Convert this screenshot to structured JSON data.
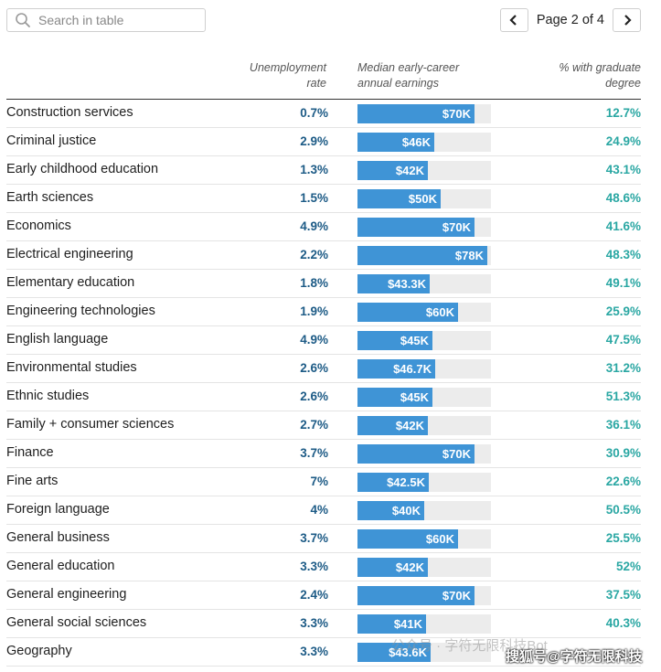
{
  "search": {
    "placeholder": "Search in table"
  },
  "pager": {
    "label": "Page 2 of 4"
  },
  "columns": {
    "unemployment": [
      "Unemployment",
      "rate"
    ],
    "earnings": [
      "Median early-career",
      "annual earnings"
    ],
    "graduate": [
      "% with graduate",
      "degree"
    ]
  },
  "colors": {
    "bar": "#3f94d6",
    "bar_track": "#ececec",
    "unemployment": "#1d5b86",
    "graduate": "#2aa7a3"
  },
  "earnings_scale_max": 80,
  "rows": [
    {
      "major": "Construction services",
      "unemployment": "0.7%",
      "earnings": "$70K",
      "earnings_value": 70,
      "graduate": "12.7%"
    },
    {
      "major": "Criminal justice",
      "unemployment": "2.9%",
      "earnings": "$46K",
      "earnings_value": 46,
      "graduate": "24.9%"
    },
    {
      "major": "Early childhood education",
      "unemployment": "1.3%",
      "earnings": "$42K",
      "earnings_value": 42,
      "graduate": "43.1%"
    },
    {
      "major": "Earth sciences",
      "unemployment": "1.5%",
      "earnings": "$50K",
      "earnings_value": 50,
      "graduate": "48.6%"
    },
    {
      "major": "Economics",
      "unemployment": "4.9%",
      "earnings": "$70K",
      "earnings_value": 70,
      "graduate": "41.6%"
    },
    {
      "major": "Electrical engineering",
      "unemployment": "2.2%",
      "earnings": "$78K",
      "earnings_value": 78,
      "graduate": "48.3%"
    },
    {
      "major": "Elementary education",
      "unemployment": "1.8%",
      "earnings": "$43.3K",
      "earnings_value": 43.3,
      "graduate": "49.1%"
    },
    {
      "major": "Engineering technologies",
      "unemployment": "1.9%",
      "earnings": "$60K",
      "earnings_value": 60,
      "graduate": "25.9%"
    },
    {
      "major": "English language",
      "unemployment": "4.9%",
      "earnings": "$45K",
      "earnings_value": 45,
      "graduate": "47.5%"
    },
    {
      "major": "Environmental studies",
      "unemployment": "2.6%",
      "earnings": "$46.7K",
      "earnings_value": 46.7,
      "graduate": "31.2%"
    },
    {
      "major": "Ethnic studies",
      "unemployment": "2.6%",
      "earnings": "$45K",
      "earnings_value": 45,
      "graduate": "51.3%"
    },
    {
      "major": "Family + consumer sciences",
      "unemployment": "2.7%",
      "earnings": "$42K",
      "earnings_value": 42,
      "graduate": "36.1%"
    },
    {
      "major": "Finance",
      "unemployment": "3.7%",
      "earnings": "$70K",
      "earnings_value": 70,
      "graduate": "30.9%"
    },
    {
      "major": "Fine arts",
      "unemployment": "7%",
      "earnings": "$42.5K",
      "earnings_value": 42.5,
      "graduate": "22.6%"
    },
    {
      "major": "Foreign language",
      "unemployment": "4%",
      "earnings": "$40K",
      "earnings_value": 40,
      "graduate": "50.5%"
    },
    {
      "major": "General business",
      "unemployment": "3.7%",
      "earnings": "$60K",
      "earnings_value": 60,
      "graduate": "25.5%"
    },
    {
      "major": "General education",
      "unemployment": "3.3%",
      "earnings": "$42K",
      "earnings_value": 42,
      "graduate": "52%"
    },
    {
      "major": "General engineering",
      "unemployment": "2.4%",
      "earnings": "$70K",
      "earnings_value": 70,
      "graduate": "37.5%"
    },
    {
      "major": "General social sciences",
      "unemployment": "3.3%",
      "earnings": "$41K",
      "earnings_value": 41,
      "graduate": "40.3%"
    },
    {
      "major": "Geography",
      "unemployment": "3.3%",
      "earnings": "$43.6K",
      "earnings_value": 43.6,
      "graduate": ""
    }
  ],
  "watermark": {
    "text": "公众号 · 字符无限科技Bot",
    "text2": "搜狐号@字符无限科技"
  }
}
